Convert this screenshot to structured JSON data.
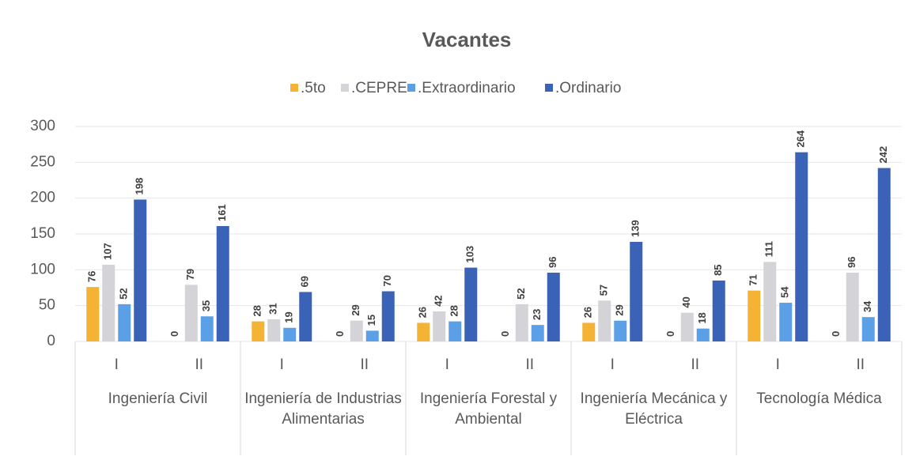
{
  "chart_data": {
    "type": "bar",
    "title": "Vacantes",
    "categories": [
      "I",
      "II",
      "I",
      "II",
      "I",
      "II",
      "I",
      "II",
      "I",
      "II"
    ],
    "groups": [
      "Ingeniería Civil",
      "Ingeniería de Industrias Alimentarias",
      "Ingeniería Forestal y Ambiental",
      "Ingeniería Mecánica y Eléctrica",
      "Tecnología Médica"
    ],
    "series": [
      {
        "name": ".5to",
        "color": "#f5b335",
        "values": [
          76,
          0,
          28,
          0,
          26,
          0,
          26,
          0,
          71,
          0
        ]
      },
      {
        "name": ".CEPRE",
        "color": "#d3d3d8",
        "values": [
          107,
          79,
          31,
          29,
          42,
          52,
          57,
          40,
          111,
          96
        ]
      },
      {
        "name": ".Extraordinario",
        "color": "#5b9fe6",
        "values": [
          52,
          35,
          19,
          15,
          28,
          23,
          29,
          18,
          54,
          34
        ]
      },
      {
        "name": ".Ordinario",
        "color": "#3a62b6",
        "values": [
          198,
          161,
          69,
          70,
          103,
          96,
          139,
          85,
          264,
          242
        ]
      }
    ],
    "ylim": [
      0,
      300
    ],
    "yticks": [
      0,
      50,
      100,
      150,
      200,
      250,
      300
    ],
    "grid": true,
    "legend": "top"
  }
}
